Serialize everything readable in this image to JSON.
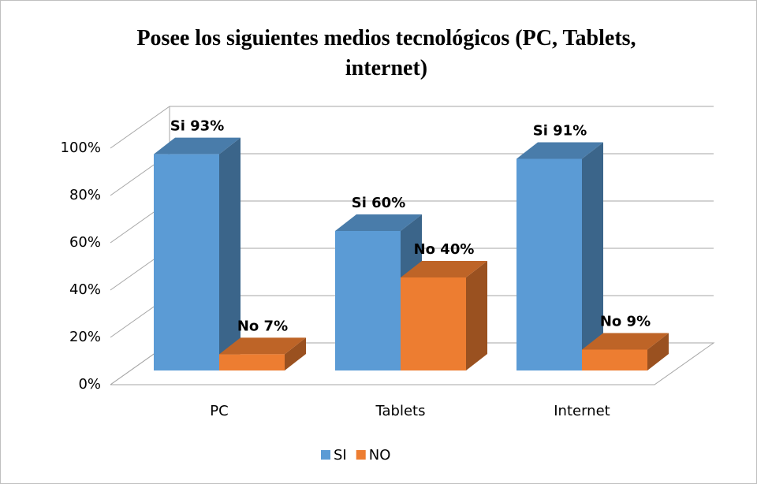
{
  "chart_data": {
    "type": "bar3d",
    "title": "Posee los siguientes medios tecnológicos (PC, Tablets, internet)",
    "categories": [
      "PC",
      "Tablets",
      "Internet"
    ],
    "series": [
      {
        "name": "SI",
        "color": "#5b9bd5",
        "values": [
          93,
          60,
          91
        ],
        "value_labels": [
          "Si  93%",
          "Si 60%",
          "Si 91%"
        ]
      },
      {
        "name": "NO",
        "color": "#ed7d31",
        "values": [
          7,
          40,
          9
        ],
        "value_labels": [
          "No 7%",
          "No 40%",
          "No 9%"
        ]
      }
    ],
    "ylim": [
      0,
      100
    ],
    "yticks": [
      {
        "value": 0,
        "label": "0%"
      },
      {
        "value": 20,
        "label": "20%"
      },
      {
        "value": 40,
        "label": "40%"
      },
      {
        "value": 60,
        "label": "60%"
      },
      {
        "value": 80,
        "label": "80%"
      },
      {
        "value": 100,
        "label": "100%"
      }
    ],
    "grid": true,
    "legend": "bottom"
  }
}
